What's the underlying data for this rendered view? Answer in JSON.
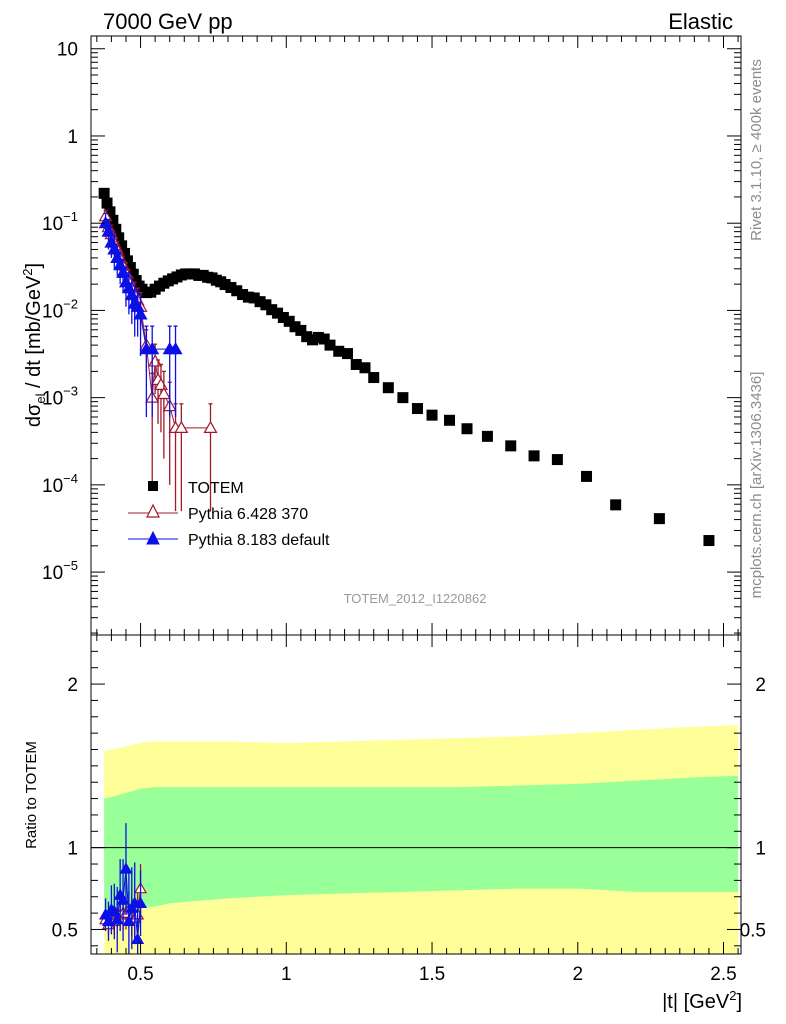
{
  "header": {
    "left": "7000 GeV pp",
    "right": "Elastic"
  },
  "side_text": {
    "rivet": "Rivet 3.1.10, ≥ 400k events",
    "mcplots": "mcplots.cern.ch [arXiv:1306.3436]"
  },
  "watermark": "TOTEM_2012_I1220862",
  "axis_labels": {
    "main_y": "dσ",
    "main_y_sub": "el",
    "main_y_rest": " / dt [mb/GeV",
    "main_y_sup": "2",
    "main_y_end": "]",
    "ratio_y": "Ratio to TOTEM",
    "x": "|t| [GeV",
    "x_sup": "2",
    "x_end": "]"
  },
  "legend": [
    "TOTEM",
    "Pythia 6.428 370",
    "Pythia 8.183 default"
  ],
  "colors": {
    "data": "#000000",
    "pythia6": "#a0182c",
    "pythia8": "#0a10e6",
    "band_inner": "#99ff99",
    "band_outer": "#ffff99"
  },
  "chart_data": {
    "type": "scatter",
    "x_scale": "linear",
    "y_scale": "log",
    "xlim": [
      0.33,
      2.56
    ],
    "ylim": [
      1.9e-06,
      14
    ],
    "ratio_ylim": [
      0.35,
      2.3
    ],
    "x_ticks": [
      0.5,
      1,
      1.5,
      2,
      2.5
    ],
    "x_tick_labels": [
      "0.5",
      "1",
      "1.5",
      "2",
      "2.5"
    ],
    "y_ticks": [
      1e-05,
      0.0001,
      0.001,
      0.01,
      0.1,
      1,
      10
    ],
    "y_tick_labels": [
      {
        "base": "10",
        "exp": "−5"
      },
      {
        "base": "10",
        "exp": "−4"
      },
      {
        "base": "10",
        "exp": "−3"
      },
      {
        "base": "10",
        "exp": "−2"
      },
      {
        "base": "10",
        "exp": "−1"
      },
      {
        "base": "1",
        "exp": ""
      },
      {
        "base": "10",
        "exp": ""
      }
    ],
    "ratio_ticks": [
      0.5,
      1,
      2
    ],
    "ratio_tick_labels": [
      "0.5",
      "1",
      "2"
    ],
    "series": [
      {
        "name": "TOTEM",
        "marker": "square",
        "x": [
          0.375,
          0.385,
          0.395,
          0.405,
          0.415,
          0.425,
          0.435,
          0.445,
          0.455,
          0.465,
          0.475,
          0.485,
          0.495,
          0.505,
          0.52,
          0.535,
          0.55,
          0.565,
          0.58,
          0.595,
          0.61,
          0.625,
          0.64,
          0.655,
          0.67,
          0.685,
          0.7,
          0.715,
          0.73,
          0.745,
          0.76,
          0.775,
          0.79,
          0.81,
          0.83,
          0.85,
          0.87,
          0.89,
          0.91,
          0.93,
          0.95,
          0.97,
          0.99,
          1.01,
          1.03,
          1.05,
          1.07,
          1.09,
          1.11,
          1.13,
          1.15,
          1.18,
          1.21,
          1.24,
          1.27,
          1.3,
          1.35,
          1.4,
          1.45,
          1.5,
          1.56,
          1.62,
          1.69,
          1.77,
          1.85,
          1.93,
          2.03,
          2.13,
          2.28,
          2.45
        ],
        "y": [
          0.22,
          0.17,
          0.135,
          0.108,
          0.085,
          0.068,
          0.055,
          0.045,
          0.037,
          0.031,
          0.026,
          0.022,
          0.019,
          0.0175,
          0.016,
          0.0162,
          0.0175,
          0.019,
          0.0205,
          0.0218,
          0.023,
          0.0242,
          0.0255,
          0.0262,
          0.0262,
          0.0262,
          0.0252,
          0.0252,
          0.024,
          0.0236,
          0.0222,
          0.0213,
          0.0198,
          0.0183,
          0.0168,
          0.0152,
          0.0142,
          0.0139,
          0.0126,
          0.0116,
          0.0102,
          0.0093,
          0.0083,
          0.0075,
          0.0065,
          0.0059,
          0.005,
          0.0046,
          0.0049,
          0.0047,
          0.004,
          0.0034,
          0.0032,
          0.0024,
          0.0022,
          0.0017,
          0.0013,
          0.001,
          0.00075,
          0.00063,
          0.00055,
          0.00044,
          0.00036,
          0.00028,
          0.000215,
          0.000195,
          0.000125,
          5.9e-05,
          4.1e-05,
          2.3e-05
        ],
        "ratio_band_x": [
          0.375,
          0.4,
          0.5,
          0.55,
          0.6,
          0.8,
          1.0,
          1.2,
          1.4,
          1.6,
          1.8,
          2.0,
          2.1,
          2.2,
          2.4,
          2.55
        ],
        "ratio_band_inner_lo": [
          0.55,
          0.58,
          0.63,
          0.64,
          0.66,
          0.69,
          0.71,
          0.72,
          0.73,
          0.74,
          0.75,
          0.75,
          0.74,
          0.73,
          0.73,
          0.73
        ],
        "ratio_band_inner_hi": [
          1.3,
          1.31,
          1.36,
          1.37,
          1.37,
          1.37,
          1.37,
          1.37,
          1.37,
          1.37,
          1.38,
          1.39,
          1.4,
          1.41,
          1.43,
          1.44
        ],
        "ratio_band_outer_lo": [
          0.35,
          0.35,
          0.35,
          0.35,
          0.35,
          0.35,
          0.35,
          0.35,
          0.35,
          0.35,
          0.35,
          0.35,
          0.35,
          0.35,
          0.35,
          0.35
        ],
        "ratio_band_outer_hi": [
          1.59,
          1.6,
          1.64,
          1.65,
          1.65,
          1.65,
          1.64,
          1.65,
          1.66,
          1.67,
          1.68,
          1.7,
          1.71,
          1.72,
          1.74,
          1.75
        ]
      },
      {
        "name": "Pythia 6.428 370",
        "marker": "open-triangle",
        "x": [
          0.38,
          0.39,
          0.4,
          0.41,
          0.42,
          0.43,
          0.44,
          0.45,
          0.46,
          0.47,
          0.48,
          0.49,
          0.5,
          0.52,
          0.54,
          0.55,
          0.56,
          0.57,
          0.58,
          0.6,
          0.62,
          0.64,
          0.74
        ],
        "y": [
          0.12,
          0.09,
          0.075,
          0.06,
          0.05,
          0.04,
          0.033,
          0.027,
          0.022,
          0.018,
          0.015,
          0.013,
          0.011,
          0.004,
          0.001,
          0.0026,
          0.0016,
          0.0014,
          0.0011,
          0.0008,
          0.00045,
          0.00045,
          0.00045
        ],
        "y_err": [
          0.02,
          0.02,
          0.02,
          0.015,
          0.012,
          0.01,
          0.009,
          0.008,
          0.007,
          0.006,
          0.006,
          0.005,
          0.005,
          0.002,
          0.0009,
          0.0015,
          0.0011,
          0.001,
          0.0009,
          0.0007,
          0.0004,
          0.0004,
          0.0004
        ],
        "ratio": [
          0.56,
          0.53,
          0.56,
          0.55,
          0.59,
          0.59,
          0.6,
          0.6,
          0.62,
          0.58,
          0.57,
          0.59,
          0.75
        ],
        "ratio_err": [
          0.05,
          0.06,
          0.07,
          0.08,
          0.08,
          0.09,
          0.1,
          0.1,
          0.11,
          0.12,
          0.12,
          0.13,
          0.15
        ]
      },
      {
        "name": "Pythia 8.183 default",
        "marker": "filled-triangle",
        "x": [
          0.38,
          0.39,
          0.4,
          0.41,
          0.42,
          0.43,
          0.44,
          0.45,
          0.46,
          0.47,
          0.48,
          0.49,
          0.5,
          0.52,
          0.54,
          0.6,
          0.62
        ],
        "y": [
          0.1,
          0.08,
          0.06,
          0.05,
          0.04,
          0.033,
          0.027,
          0.021,
          0.018,
          0.015,
          0.012,
          0.011,
          0.009,
          0.0036,
          0.0036,
          0.0036,
          0.0036
        ],
        "y_err": [
          0.03,
          0.03,
          0.02,
          0.02,
          0.015,
          0.013,
          0.011,
          0.01,
          0.009,
          0.008,
          0.007,
          0.006,
          0.006,
          0.003,
          0.003,
          0.003,
          0.003
        ],
        "ratio": [
          0.59,
          0.55,
          0.62,
          0.61,
          0.56,
          0.71,
          0.68,
          0.87,
          0.55,
          0.63,
          0.66,
          0.44,
          0.66
        ],
        "ratio_err": [
          0.1,
          0.12,
          0.15,
          0.17,
          0.2,
          0.22,
          0.25,
          0.28,
          0.3,
          0.25,
          0.25,
          0.2,
          0.2
        ]
      }
    ]
  }
}
